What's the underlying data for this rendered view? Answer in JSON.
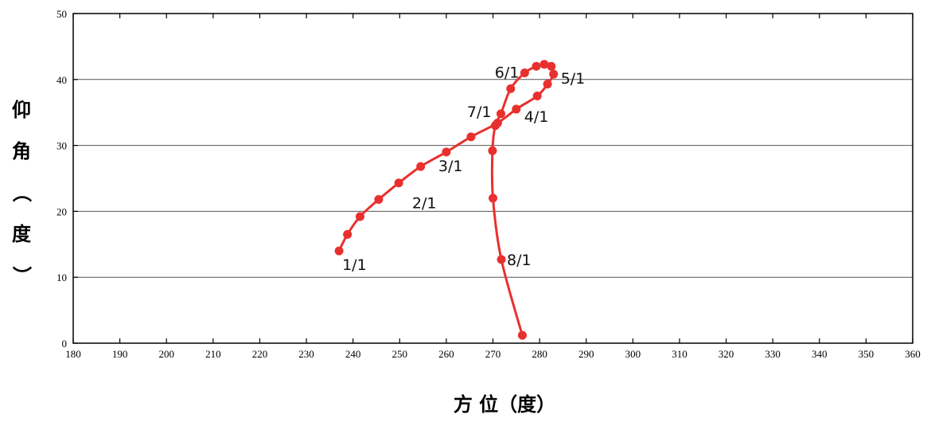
{
  "chart_data": {
    "type": "line",
    "xlabel": "方 位（度）",
    "ylabel": "仰角（度）",
    "xlim": [
      180,
      360
    ],
    "ylim": [
      0,
      50
    ],
    "x_ticks": [
      180,
      190,
      200,
      210,
      220,
      230,
      240,
      250,
      260,
      270,
      280,
      290,
      300,
      310,
      320,
      330,
      340,
      350,
      360
    ],
    "y_ticks": [
      0,
      10,
      20,
      30,
      40,
      50
    ],
    "grid": "horizontal",
    "series_color": "#e8302e",
    "points": [
      {
        "x": 237.0,
        "y": 14.0
      },
      {
        "x": 238.8,
        "y": 16.5
      },
      {
        "x": 241.5,
        "y": 19.2
      },
      {
        "x": 245.5,
        "y": 21.8
      },
      {
        "x": 249.8,
        "y": 24.3
      },
      {
        "x": 254.5,
        "y": 26.8
      },
      {
        "x": 260.0,
        "y": 29.0
      },
      {
        "x": 265.3,
        "y": 31.3
      },
      {
        "x": 271.0,
        "y": 33.4
      },
      {
        "x": 275.0,
        "y": 35.5
      },
      {
        "x": 279.5,
        "y": 37.5
      },
      {
        "x": 281.7,
        "y": 39.3
      },
      {
        "x": 283.0,
        "y": 40.8
      },
      {
        "x": 282.5,
        "y": 42.0
      },
      {
        "x": 281.0,
        "y": 42.3
      },
      {
        "x": 279.3,
        "y": 42.0
      },
      {
        "x": 276.8,
        "y": 41.0
      },
      {
        "x": 273.8,
        "y": 38.6
      },
      {
        "x": 271.7,
        "y": 34.8
      },
      {
        "x": 270.5,
        "y": 33.0
      },
      {
        "x": 269.9,
        "y": 29.2
      },
      {
        "x": 270.0,
        "y": 22.0
      },
      {
        "x": 271.8,
        "y": 12.7
      },
      {
        "x": 276.3,
        "y": 1.2
      }
    ],
    "annotations": [
      {
        "text": "1/1",
        "x": 237.0,
        "y": 14.0
      },
      {
        "text": "2/1",
        "x": 245.5,
        "y": 21.8
      },
      {
        "text": "3/1",
        "x": 260.0,
        "y": 29.0
      },
      {
        "text": "4/1",
        "x": 275.0,
        "y": 35.5
      },
      {
        "text": "5/1",
        "x": 283.0,
        "y": 40.8
      },
      {
        "text": "6/1",
        "x": 276.8,
        "y": 41.0
      },
      {
        "text": "7/1",
        "x": 271.7,
        "y": 34.8
      },
      {
        "text": "8/1",
        "x": 271.8,
        "y": 12.7
      }
    ]
  }
}
